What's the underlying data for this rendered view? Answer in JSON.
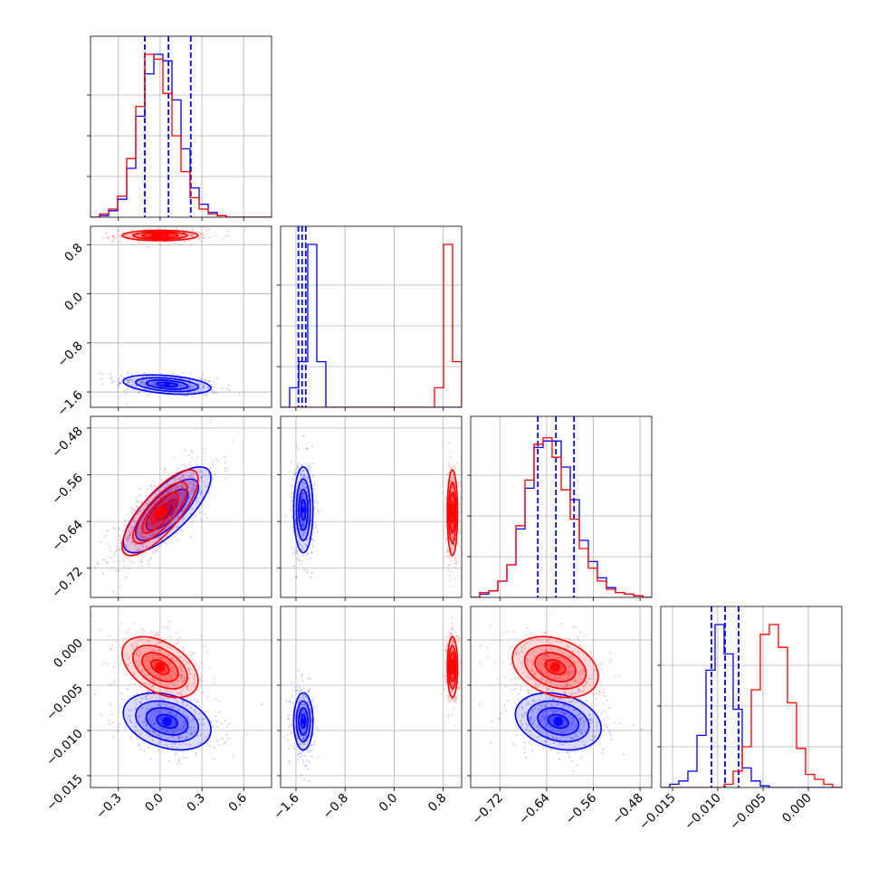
{
  "colors": {
    "series_a": "#0000ff",
    "series_b": "#ff0000",
    "grid": "#b0b0b0",
    "axes": "#000000",
    "background": "#ffffff"
  },
  "chart_data": {
    "type": "corner-plot",
    "grid": true,
    "title": "",
    "n_parameters": 4,
    "parameters": [
      {
        "label": "",
        "range": [
          -0.5,
          0.8
        ],
        "ticks": [
          -0.3,
          0.0,
          0.3,
          0.6
        ],
        "tick_labels": [
          "−0.3",
          "0.0",
          "0.3",
          "0.6"
        ]
      },
      {
        "label": "",
        "range": [
          -1.85,
          1.1
        ],
        "ticks": [
          -1.6,
          -0.8,
          0.0,
          0.8
        ],
        "tick_labels": [
          "−1.6",
          "−0.8",
          "0.0",
          "0.8"
        ]
      },
      {
        "label": "",
        "range": [
          -0.77,
          -0.46
        ],
        "ticks": [
          -0.72,
          -0.64,
          -0.56,
          -0.48
        ],
        "tick_labels": [
          "−0.72",
          "−0.64",
          "−0.56",
          "−0.48"
        ]
      },
      {
        "label": "",
        "range": [
          -0.0163,
          0.0037
        ],
        "ticks": [
          -0.015,
          -0.01,
          -0.005,
          0.0
        ],
        "tick_labels": [
          "−0.015",
          "−0.010",
          "−0.005",
          "0.000"
        ]
      }
    ],
    "series": [
      {
        "color": "#0000ff",
        "means": [
          0.05,
          -1.48,
          -0.62,
          -0.009
        ],
        "sigmas": [
          0.15,
          0.075,
          0.035,
          0.0015
        ],
        "corr": {
          "0-1": -0.35,
          "0-2": 0.75,
          "0-3": -0.3,
          "1-2": 0.0,
          "1-3": 0.0,
          "2-3": -0.25
        },
        "quantiles": [
          [
            -0.11,
            0.06,
            0.22
          ],
          [
            -1.56,
            -1.5,
            -1.44
          ],
          [
            -0.655,
            -0.624,
            -0.593
          ],
          [
            -0.0107,
            -0.0092,
            -0.0077
          ]
        ],
        "hist": [
          {
            "edges": [
              -0.5,
              0.8
            ],
            "counts": [
              0,
              0.01,
              0.04,
              0.11,
              0.3,
              0.62,
              0.88,
              1.0,
              0.96,
              0.72,
              0.42,
              0.18,
              0.08,
              0.03,
              0.01,
              0,
              0,
              0,
              0,
              0
            ]
          },
          {
            "edges": [
              -1.85,
              1.1
            ],
            "counts": [
              0,
              0.12,
              0.28,
              1.0,
              0.28,
              0,
              0,
              0,
              0,
              0,
              0,
              0,
              0,
              0,
              0,
              0,
              0,
              0,
              0,
              0
            ]
          },
          {
            "edges": [
              -0.77,
              -0.46
            ],
            "counts": [
              0,
              0.02,
              0.04,
              0.1,
              0.2,
              0.42,
              0.67,
              0.92,
              0.96,
              0.96,
              0.8,
              0.6,
              0.35,
              0.22,
              0.12,
              0.06,
              0.03,
              0.02,
              0.01,
              0
            ]
          },
          {
            "edges": [
              -0.0163,
              0.0037
            ],
            "counts": [
              0,
              0.02,
              0.04,
              0.1,
              0.32,
              0.72,
              1.0,
              0.82,
              0.48,
              0.12,
              0.04,
              0.01,
              0,
              0,
              0,
              0,
              0,
              0,
              0,
              0
            ]
          }
        ]
      },
      {
        "color": "#ff0000",
        "means": [
          0.0,
          0.95,
          -0.625,
          -0.003
        ],
        "sigmas": [
          0.13,
          0.04,
          0.035,
          0.0016
        ],
        "corr": {
          "0-1": 0.0,
          "0-2": 0.78,
          "0-3": -0.45,
          "1-2": 0.0,
          "1-3": 0.0,
          "2-3": -0.3
        },
        "quantiles": null,
        "hist": [
          {
            "edges": [
              -0.5,
              0.8
            ],
            "counts": [
              0,
              0.02,
              0.05,
              0.13,
              0.36,
              0.68,
              1.0,
              0.97,
              0.76,
              0.5,
              0.28,
              0.12,
              0.05,
              0.02,
              0.01,
              0,
              0,
              0,
              0,
              0
            ]
          },
          {
            "edges": [
              -1.85,
              1.1
            ],
            "counts": [
              0,
              0,
              0,
              0,
              0,
              0,
              0,
              0,
              0,
              0,
              0,
              0,
              0,
              0,
              0,
              0,
              0,
              0.12,
              1.0,
              0.28
            ]
          },
          {
            "edges": [
              -0.77,
              -0.46
            ],
            "counts": [
              0,
              0.03,
              0.04,
              0.1,
              0.2,
              0.44,
              0.72,
              0.94,
              0.98,
              0.86,
              0.66,
              0.48,
              0.3,
              0.18,
              0.1,
              0.05,
              0.03,
              0.02,
              0.01,
              0
            ]
          },
          {
            "edges": [
              -0.0163,
              0.0037
            ],
            "counts": [
              0,
              0,
              0,
              0,
              0,
              0,
              0,
              0.02,
              0.1,
              0.25,
              0.6,
              0.94,
              1.0,
              0.86,
              0.52,
              0.24,
              0.08,
              0.05,
              0.02,
              0
            ]
          }
        ]
      }
    ]
  }
}
